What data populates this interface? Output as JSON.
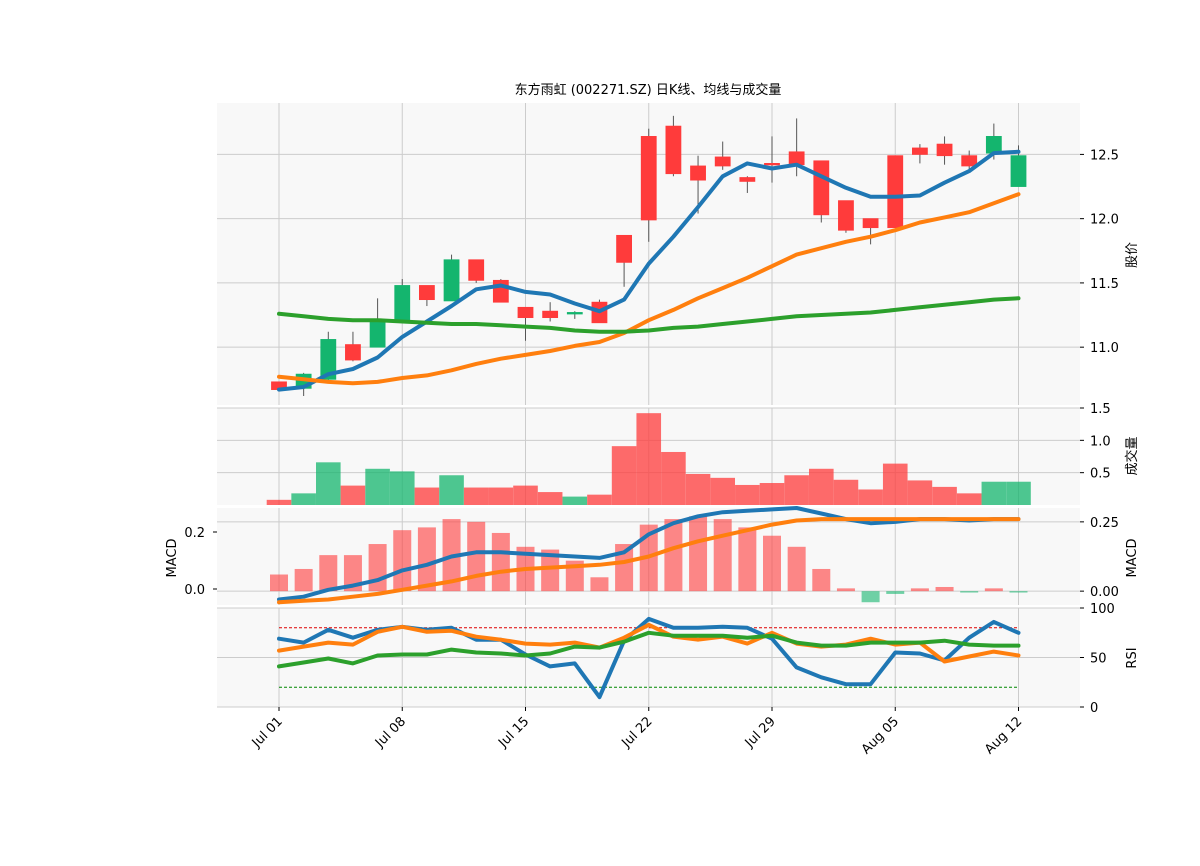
{
  "chart_data": {
    "type": "candlestick-multi-panel",
    "title": "东方雨虹 (002271.SZ) 日K线、均线与成交量",
    "x_tick_labels": [
      "Jul 01",
      "Jul 08",
      "Jul 15",
      "Jul 22",
      "Jul 29",
      "Aug 05",
      "Aug 12"
    ],
    "x_tick_index": [
      0,
      5,
      10,
      15,
      20,
      25,
      30
    ],
    "colors": {
      "up": "#ff3b3b",
      "down": "#14b56e",
      "ma_short": "#1f77b4",
      "ma_mid": "#ff7f0e",
      "ma_long": "#2ca02c",
      "grid": "#cccccc",
      "panel_bg": "#f8f8f8"
    },
    "price_panel": {
      "ylabel": "股价",
      "ylim": [
        10.55,
        12.9
      ],
      "yticks": [
        11.0,
        11.5,
        12.0,
        12.5
      ],
      "ytick_labels": [
        "11.0",
        "11.5",
        "12.0",
        "12.5"
      ],
      "candles": [
        {
          "o": 10.67,
          "h": 10.72,
          "l": 10.66,
          "c": 10.73
        },
        {
          "o": 10.79,
          "h": 10.8,
          "l": 10.62,
          "c": 10.68
        },
        {
          "o": 11.06,
          "h": 11.12,
          "l": 10.74,
          "c": 10.75
        },
        {
          "o": 10.9,
          "h": 11.12,
          "l": 10.89,
          "c": 11.02
        },
        {
          "o": 11.2,
          "h": 11.38,
          "l": 11.0,
          "c": 11.0
        },
        {
          "o": 11.48,
          "h": 11.53,
          "l": 11.2,
          "c": 11.2
        },
        {
          "o": 11.37,
          "h": 11.48,
          "l": 11.32,
          "c": 11.48
        },
        {
          "o": 11.68,
          "h": 11.72,
          "l": 11.36,
          "c": 11.36
        },
        {
          "o": 11.52,
          "h": 11.68,
          "l": 11.5,
          "c": 11.68
        },
        {
          "o": 11.35,
          "h": 11.53,
          "l": 11.35,
          "c": 11.52
        },
        {
          "o": 11.23,
          "h": 11.31,
          "l": 11.05,
          "c": 11.31
        },
        {
          "o": 11.23,
          "h": 11.35,
          "l": 11.2,
          "c": 11.28
        },
        {
          "o": 11.27,
          "h": 11.28,
          "l": 11.22,
          "c": 11.26
        },
        {
          "o": 11.19,
          "h": 11.37,
          "l": 11.19,
          "c": 11.35
        },
        {
          "o": 11.66,
          "h": 11.87,
          "l": 11.47,
          "c": 11.87
        },
        {
          "o": 11.99,
          "h": 12.7,
          "l": 11.82,
          "c": 12.64
        },
        {
          "o": 12.35,
          "h": 12.8,
          "l": 12.33,
          "c": 12.72
        },
        {
          "o": 12.3,
          "h": 12.49,
          "l": 12.04,
          "c": 12.41
        },
        {
          "o": 12.41,
          "h": 12.6,
          "l": 12.38,
          "c": 12.48
        },
        {
          "o": 12.29,
          "h": 12.33,
          "l": 12.2,
          "c": 12.32
        },
        {
          "o": 12.42,
          "h": 12.64,
          "l": 12.28,
          "c": 12.43
        },
        {
          "o": 12.42,
          "h": 12.78,
          "l": 12.33,
          "c": 12.52
        },
        {
          "o": 12.03,
          "h": 12.45,
          "l": 11.97,
          "c": 12.45
        },
        {
          "o": 11.91,
          "h": 12.14,
          "l": 11.89,
          "c": 12.14
        },
        {
          "o": 11.93,
          "h": 12.0,
          "l": 11.8,
          "c": 12.0
        },
        {
          "o": 11.93,
          "h": 12.48,
          "l": 11.93,
          "c": 12.49
        },
        {
          "o": 12.5,
          "h": 12.58,
          "l": 12.43,
          "c": 12.55
        },
        {
          "o": 12.49,
          "h": 12.64,
          "l": 12.42,
          "c": 12.58
        },
        {
          "o": 12.41,
          "h": 12.53,
          "l": 12.36,
          "c": 12.49
        },
        {
          "o": 12.64,
          "h": 12.74,
          "l": 12.46,
          "c": 12.51
        },
        {
          "o": 12.49,
          "h": 12.57,
          "l": 12.25,
          "c": 12.25
        }
      ],
      "series": [
        {
          "values": [
            10.67,
            10.69,
            10.79,
            10.83,
            10.92,
            11.08,
            11.2,
            11.32,
            11.45,
            11.48,
            11.43,
            11.41,
            11.34,
            11.28,
            11.37,
            11.65,
            11.86,
            12.09,
            12.33,
            12.43,
            12.39,
            12.42,
            12.33,
            12.24,
            12.17,
            12.17,
            12.18,
            12.28,
            12.37,
            12.51,
            12.52
          ]
        },
        {
          "values": [
            10.77,
            10.75,
            10.73,
            10.72,
            10.73,
            10.76,
            10.78,
            10.82,
            10.87,
            10.91,
            10.94,
            10.97,
            11.01,
            11.04,
            11.11,
            11.21,
            11.29,
            11.38,
            11.46,
            11.54,
            11.63,
            11.72,
            11.77,
            11.82,
            11.86,
            11.91,
            11.97,
            12.01,
            12.05,
            12.12,
            12.19
          ]
        },
        {
          "values": [
            11.26,
            11.24,
            11.22,
            11.21,
            11.21,
            11.2,
            11.19,
            11.18,
            11.18,
            11.17,
            11.16,
            11.15,
            11.13,
            11.12,
            11.12,
            11.13,
            11.15,
            11.16,
            11.18,
            11.2,
            11.22,
            11.24,
            11.25,
            11.26,
            11.27,
            11.29,
            11.31,
            11.33,
            11.35,
            11.37,
            11.38
          ]
        }
      ]
    },
    "volume_panel": {
      "ylabel": "成交量",
      "ylim": [
        0,
        1.5
      ],
      "yticks": [
        0.5,
        1.0,
        1.5
      ],
      "ytick_labels": [
        "0.5",
        "1.0",
        "1.5"
      ],
      "values": [
        0.08,
        0.18,
        0.66,
        0.3,
        0.56,
        0.52,
        0.27,
        0.46,
        0.27,
        0.27,
        0.3,
        0.2,
        0.13,
        0.16,
        0.91,
        1.42,
        0.82,
        0.48,
        0.42,
        0.31,
        0.34,
        0.46,
        0.56,
        0.39,
        0.24,
        0.64,
        0.38,
        0.28,
        0.18,
        0.36,
        0.36
      ]
    },
    "macd_panel": {
      "ylabel": "MACD",
      "ylabel_left": "MACD",
      "ylim": [
        -0.05,
        0.3
      ],
      "yticks_right": [
        0.0,
        0.25
      ],
      "ytick_labels_right": [
        "0.00",
        "0.25"
      ],
      "yticks_left": [
        0.0,
        0.2
      ],
      "ytick_labels_left": [
        "0.0",
        "0.2"
      ],
      "hist": [
        0.06,
        0.08,
        0.13,
        0.13,
        0.17,
        0.22,
        0.23,
        0.26,
        0.25,
        0.21,
        0.16,
        0.15,
        0.11,
        0.05,
        0.17,
        0.24,
        0.26,
        0.27,
        0.26,
        0.23,
        0.2,
        0.16,
        0.08,
        0.01,
        -0.04,
        -0.01,
        0.01,
        0.015,
        -0.005,
        0.01,
        -0.005
      ],
      "dif": [
        -0.03,
        -0.02,
        0.005,
        0.02,
        0.04,
        0.075,
        0.095,
        0.125,
        0.14,
        0.14,
        0.135,
        0.13,
        0.125,
        0.12,
        0.14,
        0.205,
        0.245,
        0.27,
        0.285,
        0.29,
        0.295,
        0.3,
        0.28,
        0.26,
        0.245,
        0.25,
        0.26,
        0.26,
        0.255,
        0.26,
        0.26
      ],
      "dea": [
        -0.04,
        -0.035,
        -0.03,
        -0.02,
        -0.01,
        0.005,
        0.02,
        0.035,
        0.055,
        0.07,
        0.08,
        0.085,
        0.09,
        0.095,
        0.105,
        0.125,
        0.155,
        0.18,
        0.2,
        0.22,
        0.24,
        0.255,
        0.26,
        0.26,
        0.26,
        0.26,
        0.26,
        0.26,
        0.26,
        0.26,
        0.26
      ]
    },
    "rsi_panel": {
      "ylabel": "RSI",
      "ylim": [
        0,
        100
      ],
      "yticks": [
        0,
        50,
        100
      ],
      "ytick_labels": [
        "0",
        "50",
        "100"
      ],
      "overbought": 80,
      "oversold": 20,
      "series": [
        {
          "values": [
            69,
            65,
            78,
            70,
            78,
            81,
            78,
            80,
            68,
            68,
            53,
            41,
            44,
            10,
            67,
            89,
            80,
            80,
            81,
            80,
            69,
            40,
            30,
            23,
            23,
            55,
            54,
            47,
            70,
            86,
            75
          ]
        },
        {
          "values": [
            57,
            61,
            65,
            63,
            76,
            81,
            76,
            77,
            71,
            68,
            64,
            63,
            65,
            60,
            70,
            83,
            71,
            68,
            71,
            64,
            75,
            64,
            61,
            63,
            69,
            63,
            65,
            46,
            51,
            56,
            52
          ]
        },
        {
          "values": [
            41,
            45,
            49,
            44,
            52,
            53,
            53,
            58,
            55,
            54,
            52,
            54,
            61,
            60,
            66,
            75,
            72,
            72,
            72,
            70,
            72,
            65,
            62,
            62,
            65,
            65,
            65,
            67,
            63,
            62,
            62
          ]
        }
      ]
    }
  }
}
